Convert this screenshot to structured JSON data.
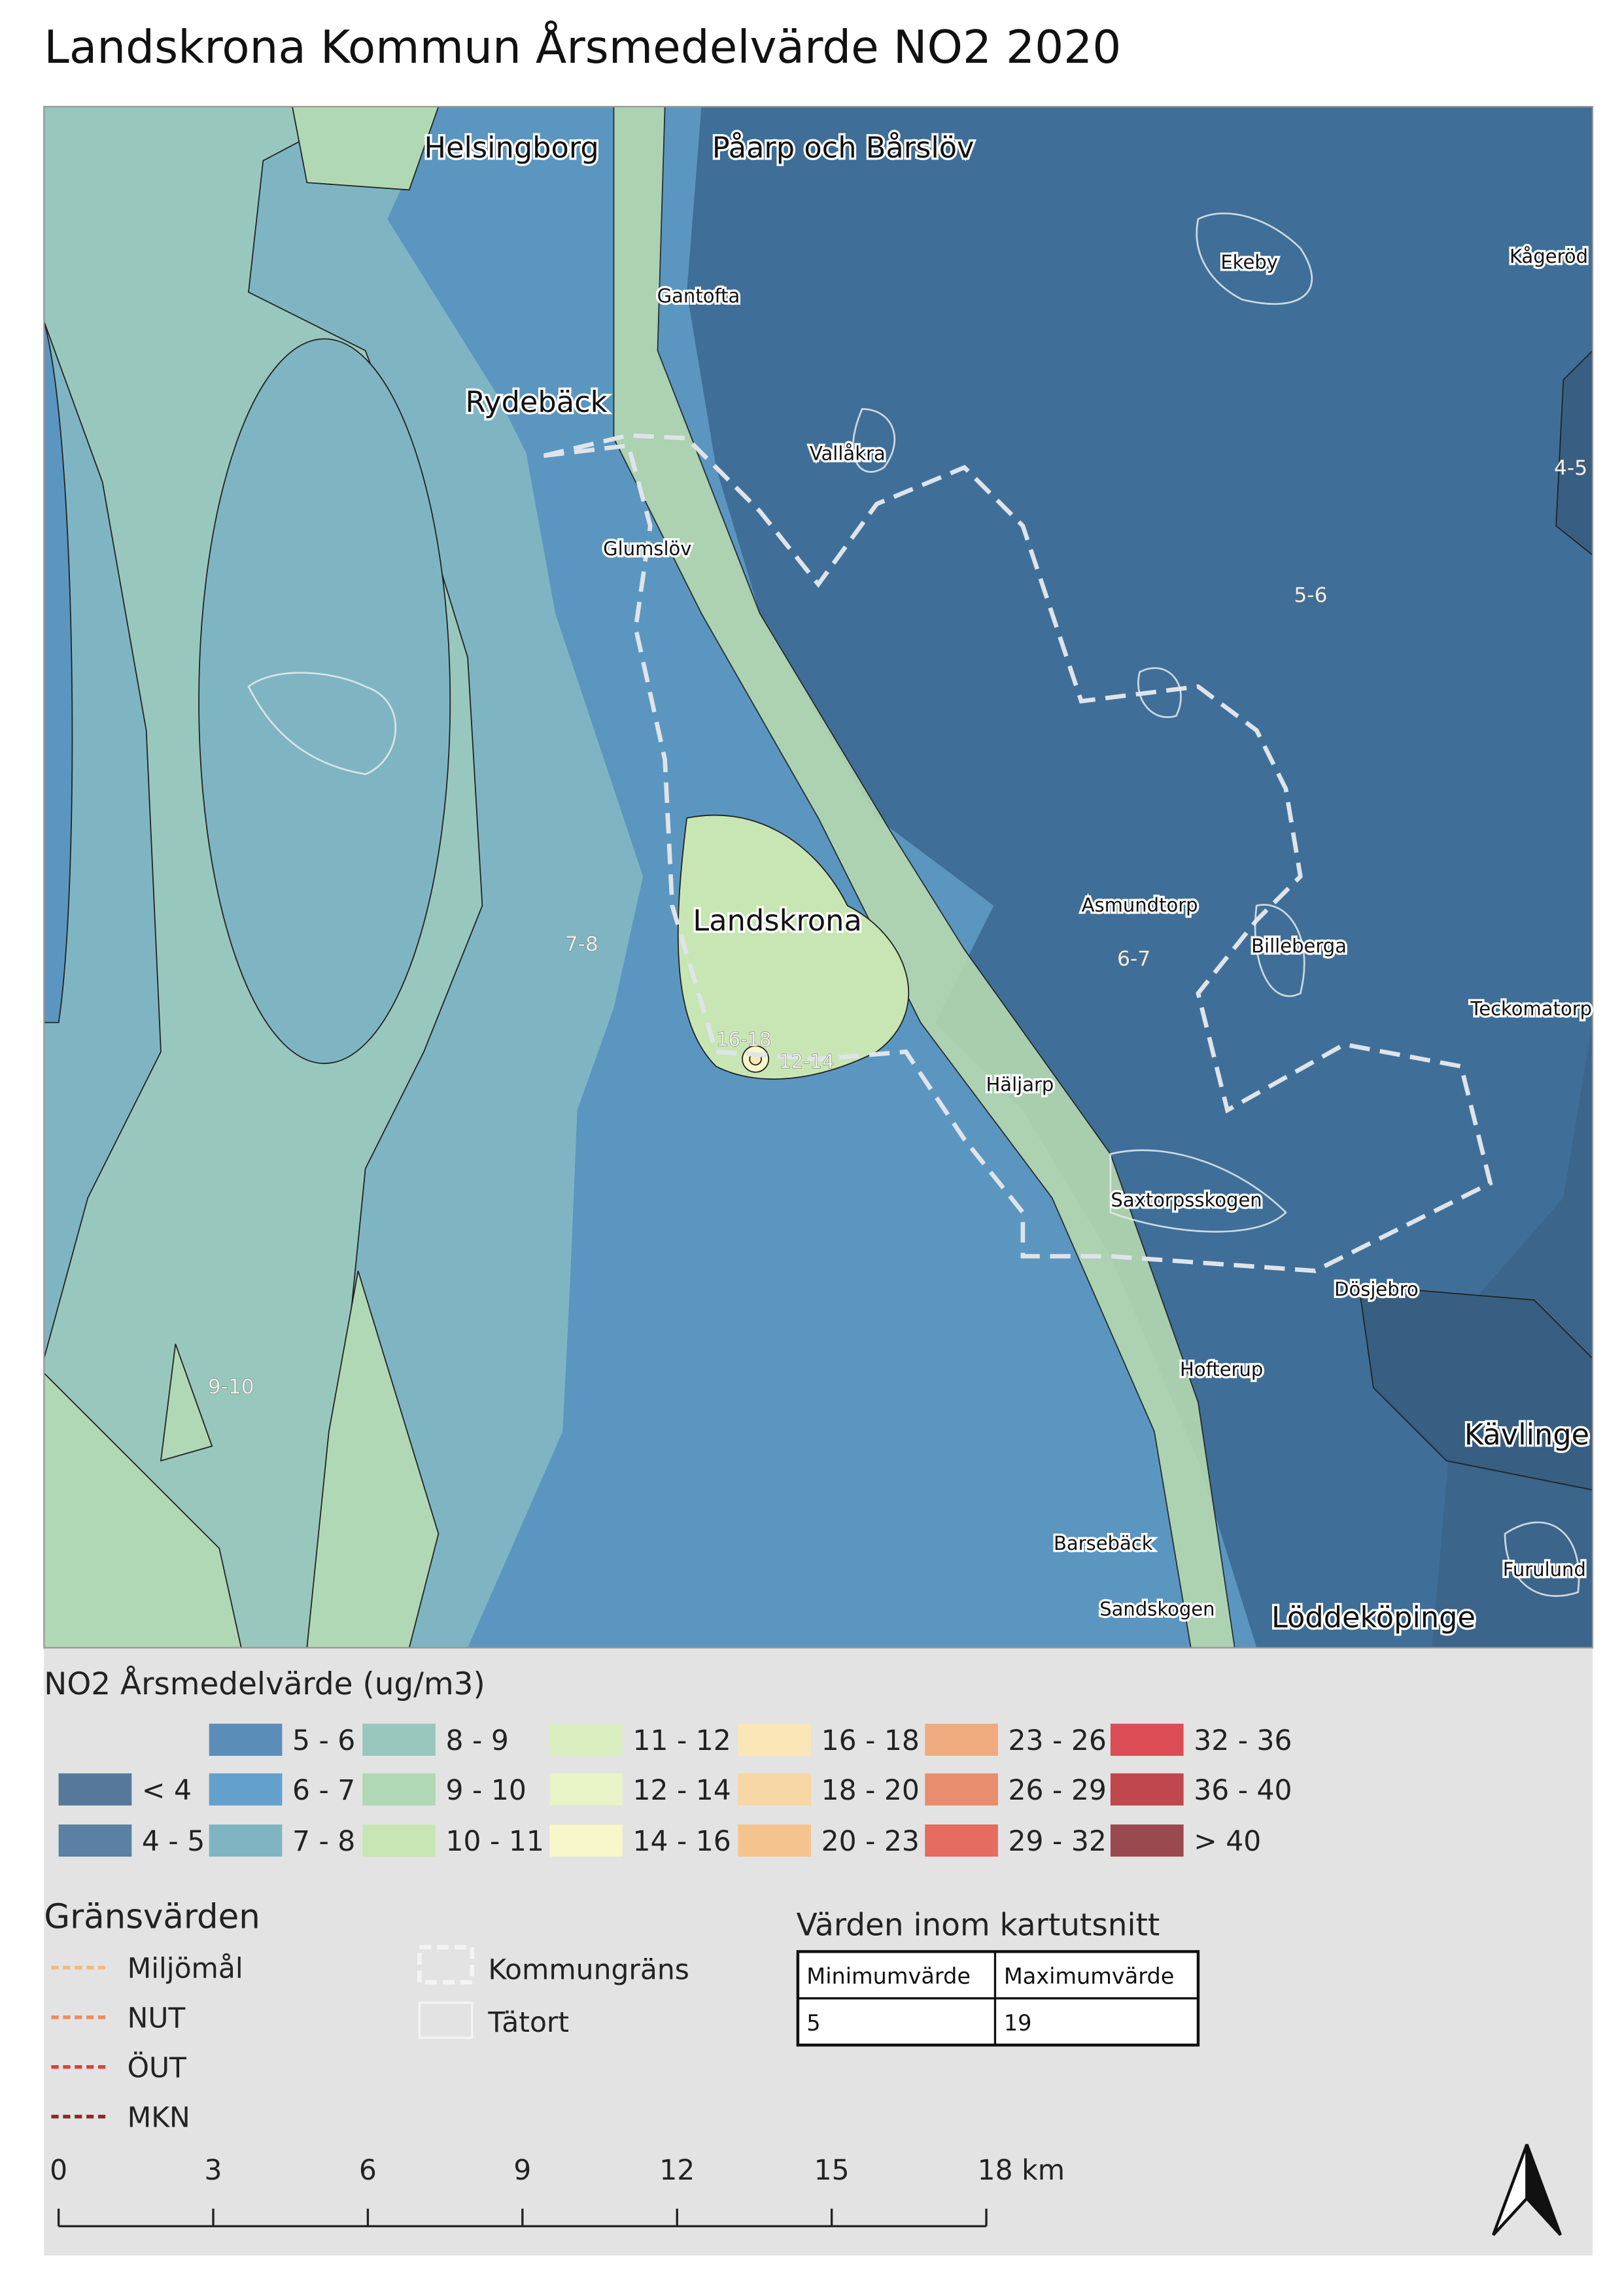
{
  "header": {
    "title": "Landskrona Kommun Årsmedelvärde NO2 2020"
  },
  "map": {
    "labels": [
      "Helsingborg",
      "Påarp och Bårslöv",
      "Gantofta",
      "Rydebäck",
      "Vallåkra",
      "Glumslöv",
      "Ekeby",
      "Kågeröd",
      "4-5",
      "5-6",
      "Landskrona",
      "7-8",
      "Asmundtorp",
      "6-7",
      "Billeberga",
      "Teckomatorp",
      "16-18",
      "12-14",
      "Häljarp",
      "Saxtorpsskogen",
      "Dösjebro",
      "Hofterup",
      "9-10",
      "Kävlinge",
      "Barsebäck",
      "Furulund",
      "Sandskogen",
      "Löddeköpinge"
    ]
  },
  "legend": {
    "title": "NO2 Årsmedelvärde (ug/m3)",
    "items": [
      {
        "label": "< 4",
        "color": "#56789a"
      },
      {
        "label": "4 - 5",
        "color": "#5a80a3"
      },
      {
        "label": "5 - 6",
        "color": "#5b8db9"
      },
      {
        "label": "6 - 7",
        "color": "#64a0cc"
      },
      {
        "label": "7 - 8",
        "color": "#7fb5c3"
      },
      {
        "label": "8 - 9",
        "color": "#98c7bd"
      },
      {
        "label": "9 - 10",
        "color": "#b0d8b4"
      },
      {
        "label": "10 - 11",
        "color": "#c8e6b3"
      },
      {
        "label": "11 - 12",
        "color": "#dbeec0"
      },
      {
        "label": "12 - 14",
        "color": "#e8f3c6"
      },
      {
        "label": "14 - 16",
        "color": "#f7f7ca"
      },
      {
        "label": "16 - 18",
        "color": "#fbe6b8"
      },
      {
        "label": "18 - 20",
        "color": "#f7d7a5"
      },
      {
        "label": "20 - 23",
        "color": "#f5c48e"
      },
      {
        "label": "23 - 26",
        "color": "#f0ab80"
      },
      {
        "label": "26 - 29",
        "color": "#e98d6f"
      },
      {
        "label": "29 - 32",
        "color": "#e66b61"
      },
      {
        "label": "32 - 36",
        "color": "#dc4c54"
      },
      {
        "label": "36 - 40",
        "color": "#c0474d"
      },
      {
        "label": "> 40",
        "color": "#9a4a4e"
      }
    ]
  },
  "limits": {
    "title": "Gränsvärden",
    "items": [
      {
        "label": "Miljömål",
        "color": "#f5b97b"
      },
      {
        "label": "NUT",
        "color": "#f08a5d"
      },
      {
        "label": "ÖUT",
        "color": "#e03c3c"
      },
      {
        "label": "MKN",
        "color": "#8b2a2a"
      }
    ],
    "boundaries": [
      "Kommungräns",
      "Tätort"
    ]
  },
  "table": {
    "title": "Värden inom kartutsnitt",
    "header": [
      "Minimumvärde",
      "Maximumvärde"
    ],
    "rows": [
      [
        5,
        19
      ]
    ]
  },
  "scalebar": {
    "ticks": [
      0,
      3,
      6,
      9,
      12,
      15,
      {
        "value": 18,
        "label": "18 km"
      }
    ]
  }
}
